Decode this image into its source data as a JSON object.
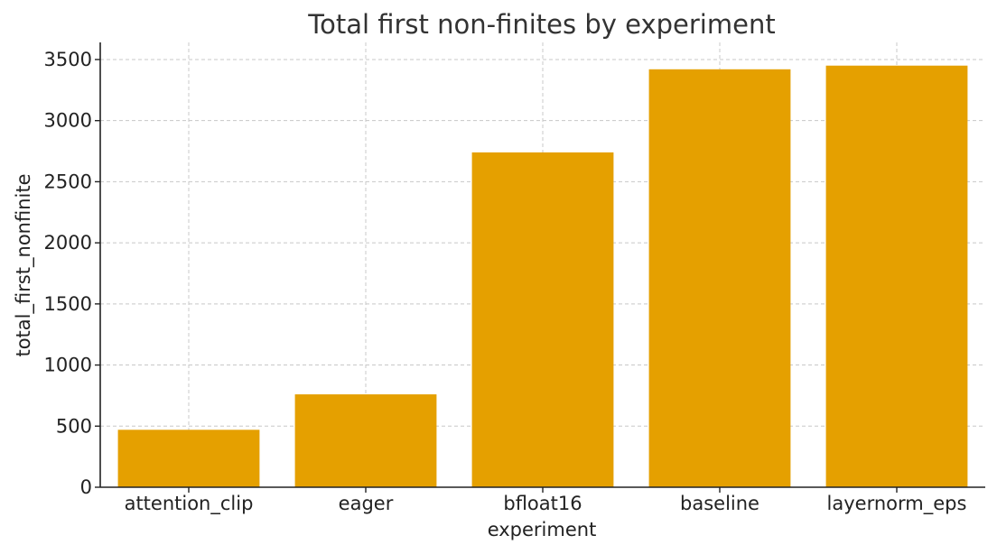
{
  "chart_data": {
    "type": "bar",
    "title": "Total first non-finites by experiment",
    "xlabel": "experiment",
    "ylabel": "total_first_nonfinite",
    "categories": [
      "attention_clip",
      "eager",
      "bfloat16",
      "baseline",
      "layernorm_eps"
    ],
    "values": [
      470,
      760,
      2740,
      3420,
      3450
    ],
    "ylim": [
      0,
      3640
    ],
    "yticks": [
      0,
      500,
      1000,
      1500,
      2000,
      2500,
      3000,
      3500
    ],
    "grid": true,
    "bar_color": "#e5a000"
  }
}
